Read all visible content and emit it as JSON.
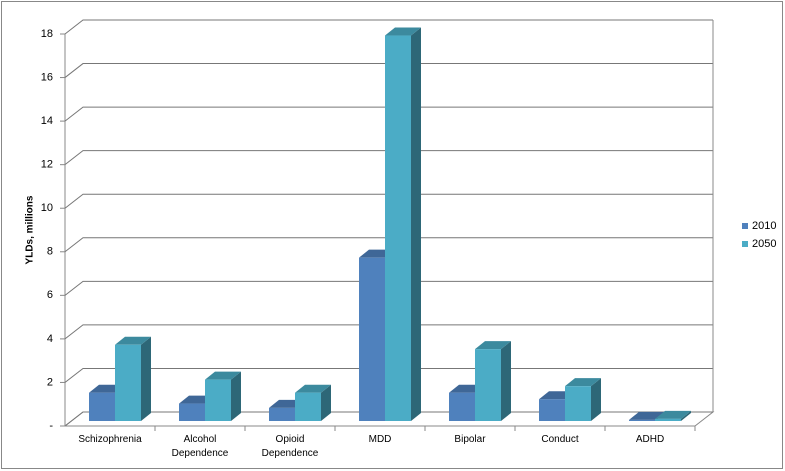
{
  "chart_data": {
    "type": "bar3d",
    "y_label": "YLDs, millions",
    "categories": [
      "Schizophrenia",
      "Alcohol Dependence",
      "Opioid Dependence",
      "MDD",
      "Bipolar",
      "Conduct",
      "ADHD"
    ],
    "series": [
      {
        "name": "2010",
        "color": "#4f81bd",
        "values": [
          1.3,
          0.8,
          0.6,
          7.5,
          1.3,
          1.0,
          0.05
        ]
      },
      {
        "name": "2050",
        "color": "#4bacc6",
        "values": [
          3.5,
          1.9,
          1.3,
          17.7,
          3.3,
          1.6,
          0.1
        ]
      }
    ],
    "ylim": [
      0,
      18
    ],
    "yticks": [
      {
        "value": 0,
        "label": "-"
      },
      2,
      4,
      6,
      8,
      10,
      12,
      14,
      16,
      18
    ],
    "grid": true,
    "legend": "right"
  }
}
